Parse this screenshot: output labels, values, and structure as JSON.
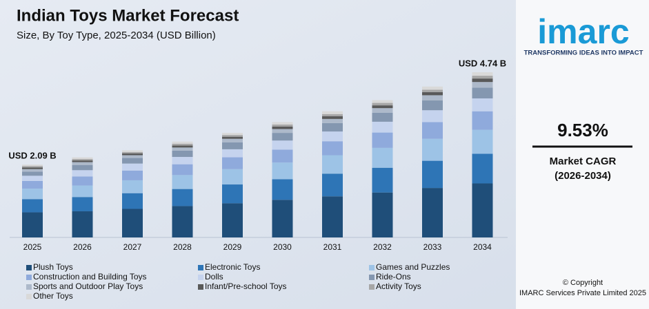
{
  "chart_data": {
    "type": "stacked-bar",
    "title": "Indian Toys Market Forecast",
    "subtitle": "Size, By Toy Type, 2025-2034 (USD Billion)",
    "categories": [
      "2025",
      "2026",
      "2027",
      "2028",
      "2029",
      "2030",
      "2031",
      "2032",
      "2033",
      "2034"
    ],
    "series": [
      {
        "name": "Plush Toys",
        "color": "#1f4e79",
        "values": [
          0.72,
          0.75,
          0.82,
          0.9,
          0.98,
          1.08,
          1.18,
          1.29,
          1.42,
          1.55
        ]
      },
      {
        "name": "Electronic Toys",
        "color": "#2e75b6",
        "values": [
          0.38,
          0.41,
          0.45,
          0.49,
          0.54,
          0.59,
          0.65,
          0.71,
          0.78,
          0.85
        ]
      },
      {
        "name": "Games and Puzzles",
        "color": "#9dc3e6",
        "values": [
          0.3,
          0.33,
          0.37,
          0.4,
          0.44,
          0.48,
          0.53,
          0.57,
          0.63,
          0.69
        ]
      },
      {
        "name": "Construction and Building Toys",
        "color": "#8faadc",
        "values": [
          0.22,
          0.26,
          0.28,
          0.31,
          0.34,
          0.37,
          0.4,
          0.44,
          0.48,
          0.53
        ]
      },
      {
        "name": "Dolls",
        "color": "#c5d3ee",
        "values": [
          0.15,
          0.18,
          0.2,
          0.21,
          0.23,
          0.26,
          0.28,
          0.31,
          0.34,
          0.37
        ]
      },
      {
        "name": "Ride-Ons",
        "color": "#8497b0",
        "values": [
          0.12,
          0.15,
          0.16,
          0.18,
          0.2,
          0.22,
          0.24,
          0.26,
          0.28,
          0.31
        ]
      },
      {
        "name": "Sports and Outdoor Play Toys",
        "color": "#adb9ca",
        "values": [
          0.07,
          0.08,
          0.08,
          0.09,
          0.1,
          0.11,
          0.12,
          0.13,
          0.15,
          0.16
        ]
      },
      {
        "name": "Infant/Pre-school Toys",
        "color": "#595959",
        "values": [
          0.05,
          0.05,
          0.05,
          0.06,
          0.06,
          0.07,
          0.08,
          0.08,
          0.09,
          0.1
        ]
      },
      {
        "name": "Activity Toys",
        "color": "#a6a6a6",
        "values": [
          0.04,
          0.04,
          0.04,
          0.05,
          0.05,
          0.06,
          0.06,
          0.07,
          0.07,
          0.08
        ]
      },
      {
        "name": "Other Toys",
        "color": "#d9d9d9",
        "values": [
          0.04,
          0.05,
          0.05,
          0.06,
          0.06,
          0.07,
          0.08,
          0.08,
          0.09,
          0.1
        ]
      }
    ],
    "annotations": [
      "USD 2.09 B",
      "USD 4.74 B"
    ]
  },
  "panel": {
    "logo": "imarc",
    "tagline": "TRANSFORMING IDEAS INTO IMPACT",
    "cagr": "9.53%",
    "cagr_label": "Market CAGR",
    "cagr_period": "(2026-2034)",
    "copyright": "© Copyright",
    "company": "IMARC Services Private Limited 2025"
  }
}
